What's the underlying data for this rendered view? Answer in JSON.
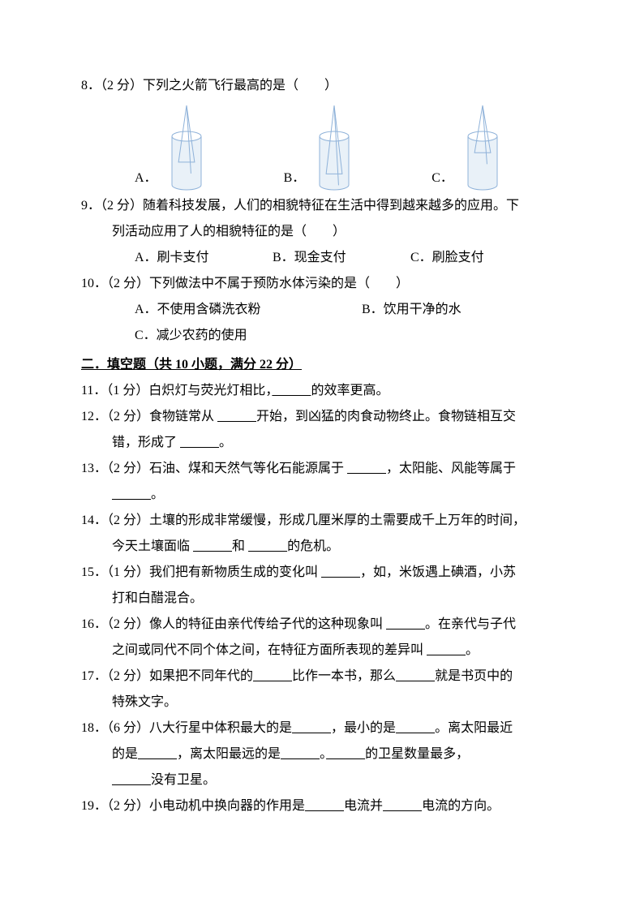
{
  "q8": {
    "line": "8．（2 分）下列之火箭飞行最高的是（　　）",
    "optA": "A．",
    "optB": "B．",
    "optC": "C．",
    "svg": {
      "stroke": "#8fb2d9",
      "fill": "#e9f1f8",
      "w": 60,
      "h": 108,
      "innerA": 0.55,
      "innerB": 0.8,
      "innerC": 0.35
    }
  },
  "q9": {
    "line1": "9．（2 分）随着科技发展，人们的相貌特征在生活中得到越来越多的应用。下",
    "line2": "列活动应用了人的相貌特征的是（　　）",
    "optA": "A．刷卡支付",
    "optB": "B．现金支付",
    "optC": "C．刷脸支付"
  },
  "q10": {
    "line": "10．（2 分）下列做法中不属于预防水体污染的是（　　）",
    "optA": "A．不使用含磷洗衣粉",
    "optB": "B．饮用干净的水",
    "optC": "C．减少农药的使用"
  },
  "section2": "二．填空题（共 10 小题，满分 22 分）",
  "q11": {
    "t1": "11．（1 分）白炽灯与荧光灯相比，",
    "b1": "　　　",
    "t2": "的效率更高。"
  },
  "q12": {
    "t1": "12．（2 分）食物链常从 ",
    "b1": "　　　",
    "t2": "开始，到凶猛的肉食动物终止。食物链相互交",
    "l2a": "错，形成了 ",
    "l2b": "　　　",
    "l2c": "。"
  },
  "q13": {
    "t1": "13．（2 分）石油、煤和天然气等化石能源属于 ",
    "b1": "　　　",
    "t2": "，太阳能、风能等属于",
    "l2a": " ",
    "l2b": "　　　",
    "l2c": "。"
  },
  "q14": {
    "t1": "14．（2 分）土壤的形成非常缓慢，形成几厘米厚的土需要成千上万年的时间，",
    "l2a": "今天土壤面临 ",
    "l2b1": "　　　",
    "l2c": "和 ",
    "l2b2": "　　　",
    "l2d": "的危机。"
  },
  "q15": {
    "t1": "15．（1 分）我们把有新物质生成的变化叫 ",
    "b1": "　　　",
    "t2": "，如，米饭遇上碘酒，小苏",
    "l2": "打和白醋混合。"
  },
  "q16": {
    "t1": "16．（2 分）像人的特征由亲代传给子代的这种现象叫 ",
    "b1": "　　　",
    "t2": "。在亲代与子代",
    "l2a": "之间或同代不同个体之间，在特征方面所表现的差异叫 ",
    "l2b": "　　　",
    "l2c": "。"
  },
  "q17": {
    "t1": "17．（2 分）如果把不同年代的",
    "b1": "　　　",
    "t2": "比作一本书，那么",
    "b2": "　　　",
    "t3": "就是书页中的",
    "l2": "特殊文字。"
  },
  "q18": {
    "t1": "18．（6 分）八大行星中体积最大的是",
    "b1": "　　　",
    "t2": "，最小的是",
    "b2": "　　　",
    "t3": "。离太阳最近",
    "l2a": "的是",
    "l2b1": "　　　",
    "l2c": "，离太阳最远的是",
    "l2b2": "　　　",
    "l2d": "。",
    "l2b3": "　　　",
    "l2e": "的卫星数量最多，",
    "l3a": "　　　",
    "l3b": "没有卫星。"
  },
  "q19": {
    "t1": "19．（2 分）小电动机中换向器的作用是",
    "b1": "　　　",
    "t2": "电流并",
    "b2": "　　　",
    "t3": "电流的方向。"
  }
}
